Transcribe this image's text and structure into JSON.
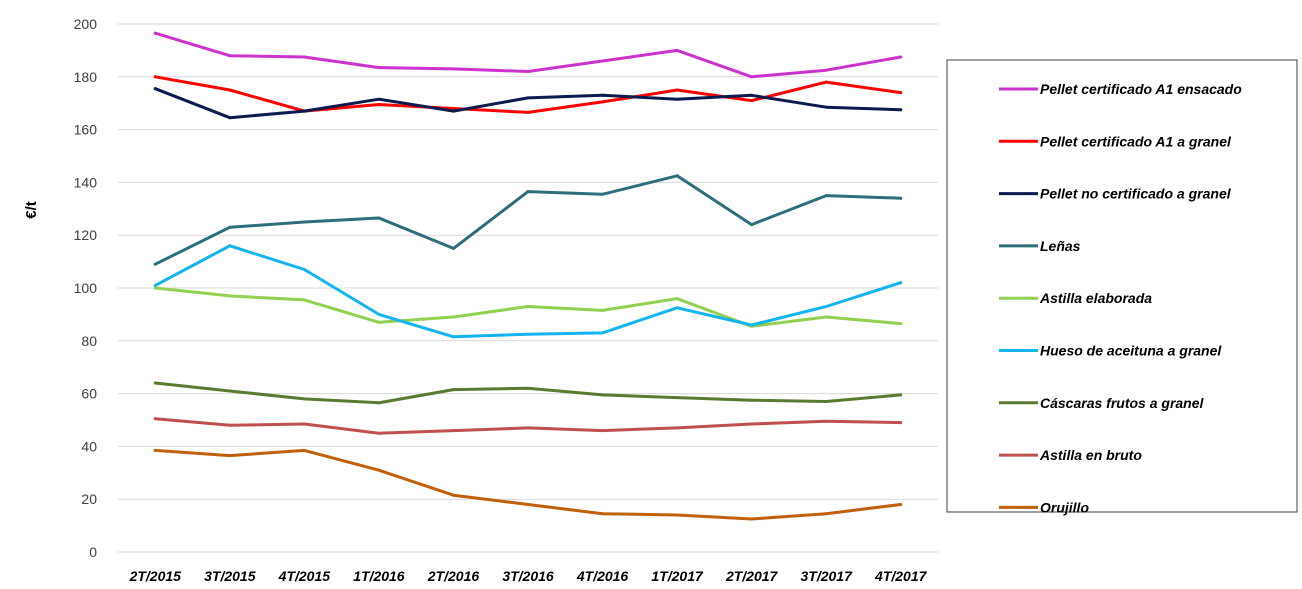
{
  "chart_data": {
    "type": "line",
    "title": "",
    "xlabel": "",
    "ylabel": "€/t",
    "ylim": [
      0,
      200
    ],
    "yticks": [
      "0",
      "20",
      "40",
      "60",
      "80",
      "100",
      "120",
      "140",
      "160",
      "180",
      "200"
    ],
    "grid": "horizontal",
    "legend_position": "right",
    "categories": [
      "2T/2015",
      "3T/2015",
      "4T/2015",
      "1T/2016",
      "2T/2016",
      "3T/2016",
      "4T/2016",
      "1T/2017",
      "2T/2017",
      "3T/2017",
      "4T/2017"
    ],
    "series": [
      {
        "name": "Pellet certificado A1 ensacado",
        "color": "#cc33cc",
        "values": [
          196.5,
          188,
          187.5,
          183.5,
          183,
          182,
          186,
          190,
          180,
          182.5,
          187.5
        ]
      },
      {
        "name": " Pellet certificado A1 a granel",
        "color": "#ff0000",
        "values": [
          180,
          175,
          167,
          169.5,
          168,
          166.5,
          170.5,
          175,
          171,
          178,
          174
        ]
      },
      {
        "name": "Pellet no certificado a granel",
        "color": "#0d1a4d",
        "values": [
          175.5,
          164.5,
          167,
          171.5,
          167,
          172,
          173,
          171.5,
          173,
          168.5,
          167.5
        ]
      },
      {
        "name": "Leñas",
        "color": "#2e6e7a",
        "values": [
          109,
          123,
          125,
          126.5,
          115,
          136.5,
          135.5,
          142.5,
          124,
          135,
          134
        ]
      },
      {
        "name": "Astilla elaborada",
        "color": "#92d050",
        "values": [
          100,
          97,
          95.5,
          87,
          89,
          93,
          91.5,
          96,
          85.5,
          89,
          86.5
        ]
      },
      {
        "name": "Hueso de aceituna a granel",
        "color": "#14b4f0",
        "values": [
          101,
          116,
          107,
          90,
          81.5,
          82.5,
          83,
          92.5,
          86,
          93,
          102
        ]
      },
      {
        "name": "Cáscaras frutos a granel",
        "color": "#5a7a32",
        "values": [
          64,
          61,
          58,
          56.5,
          61.5,
          62,
          59.5,
          58.5,
          57.5,
          57,
          59.5
        ]
      },
      {
        "name": "Astilla en bruto",
        "color": "#c0504d",
        "values": [
          50.5,
          48,
          48.5,
          45,
          46,
          47,
          46,
          47,
          48.5,
          49.5,
          49
        ]
      },
      {
        "name": "Orujillo",
        "color": "#c0600a",
        "values": [
          38.5,
          36.5,
          38.5,
          31,
          21.5,
          18,
          14.5,
          14,
          12.5,
          14.5,
          18
        ]
      }
    ]
  }
}
